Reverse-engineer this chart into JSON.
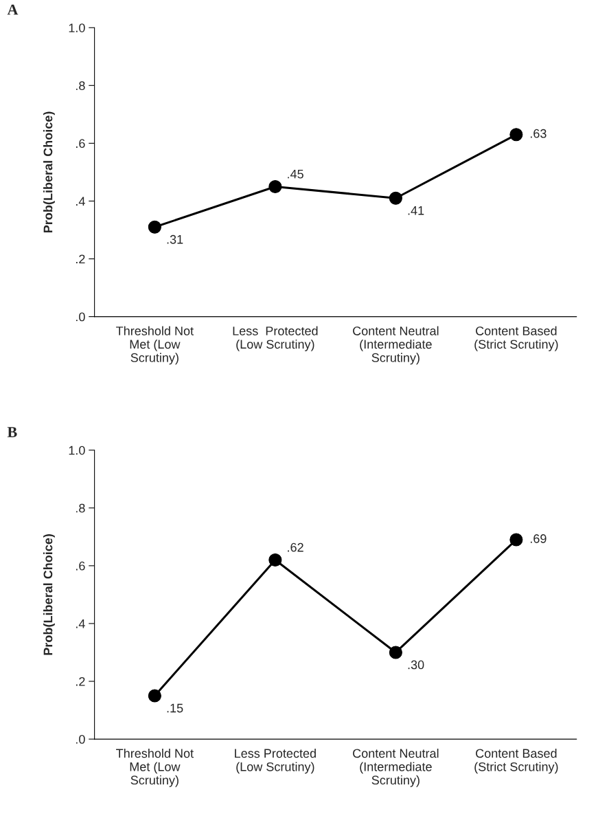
{
  "chart_data": [
    {
      "type": "line",
      "title": "A",
      "ylabel": "Prob(Liberal Choice)",
      "categories": [
        "Threshold Not\nMet (Low\nScrutiny)",
        "Less  Protected\n(Low Scrutiny)",
        "Content Neutral\n(Intermediate\nScrutiny)",
        "Content Based\n(Strict Scrutiny)"
      ],
      "series": [
        {
          "color": "#000000",
          "values": [
            0.31,
            0.45,
            0.41,
            0.63
          ],
          "value_labels": [
            ".31",
            ".45",
            ".41",
            ".63"
          ]
        }
      ],
      "ylim": [
        0,
        1
      ],
      "yticks": [
        {
          "value": 0,
          "label": ".0"
        },
        {
          "value": 0.2,
          "label": ".2"
        },
        {
          "value": 0.4,
          "label": ".4"
        },
        {
          "value": 0.6,
          "label": ".6"
        },
        {
          "value": 0.8,
          "label": ".8"
        },
        {
          "value": 1.0,
          "label": "1.0"
        }
      ],
      "marker": "circle",
      "line_style": "solid",
      "grid": false,
      "legend": false
    },
    {
      "type": "line",
      "title": "B",
      "ylabel": "Prob(Liberal Choice)",
      "categories": [
        "Threshold Not\nMet (Low\nScrutiny)",
        "Less Protected\n(Low Scrutiny)",
        "Content Neutral\n(Intermediate\nScrutiny)",
        "Content Based\n(Strict Scrutiny)"
      ],
      "series": [
        {
          "color": "#000000",
          "values": [
            0.15,
            0.62,
            0.3,
            0.69
          ],
          "value_labels": [
            ".15",
            ".62",
            ".30",
            ".69"
          ]
        }
      ],
      "ylim": [
        0,
        1
      ],
      "yticks": [
        {
          "value": 0,
          "label": ".0"
        },
        {
          "value": 0.2,
          "label": ".2"
        },
        {
          "value": 0.4,
          "label": ".4"
        },
        {
          "value": 0.6,
          "label": ".6"
        },
        {
          "value": 0.8,
          "label": ".8"
        },
        {
          "value": 1.0,
          "label": "1.0"
        }
      ],
      "marker": "circle",
      "line_style": "solid",
      "grid": false,
      "legend": false
    }
  ]
}
